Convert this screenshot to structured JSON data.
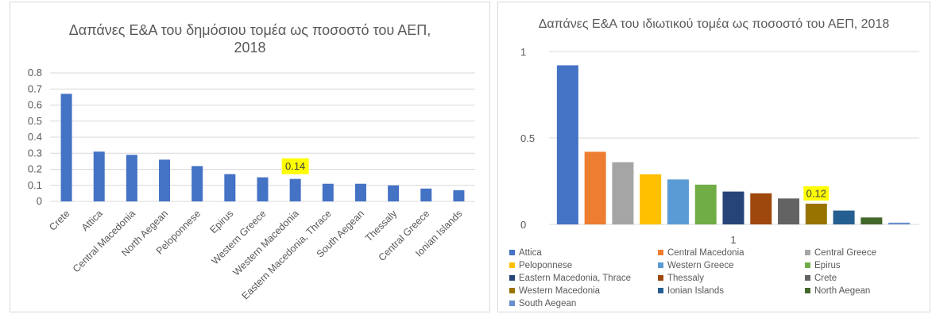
{
  "chart_data": [
    {
      "type": "bar",
      "title": "Δαπάνες Ε&Α του δημόσιου τομέα ως ποσοστό του ΑΕΠ, 2018",
      "categories": [
        "Crete",
        "Attica",
        "Central Macedonia",
        "North Aegean",
        "Peloponnese",
        "Epirus",
        "Western Greece",
        "Western Macedonia",
        "Eastern Macedonia, Thrace",
        "South Aegean",
        "Thessaly",
        "Central Greece",
        "Ionian Islands"
      ],
      "values": [
        0.67,
        0.31,
        0.29,
        0.26,
        0.22,
        0.17,
        0.15,
        0.14,
        0.11,
        0.11,
        0.1,
        0.08,
        0.07
      ],
      "ylim": [
        0,
        0.8
      ],
      "yticks": [
        "0",
        "0.1",
        "0.2",
        "0.3",
        "0.4",
        "0.5",
        "0.6",
        "0.7",
        "0.8"
      ],
      "bar_color": "#4472C4",
      "grid": true,
      "highlight": {
        "category": "Western Macedonia",
        "label": "0.14",
        "background": "#FFFF00"
      }
    },
    {
      "type": "bar",
      "title": "Δαπάνες Ε&Α του ιδιωτικού τομέα ως ποσοστό του ΑΕΠ, 2018",
      "categories": [
        "1"
      ],
      "ylim": [
        0,
        1
      ],
      "yticks": [
        "0",
        "0.5",
        "1"
      ],
      "grid": true,
      "legend_position": "bottom",
      "series": [
        {
          "name": "Attica",
          "values": [
            0.92
          ],
          "color": "#4472C4"
        },
        {
          "name": "Central Macedonia",
          "values": [
            0.42
          ],
          "color": "#ED7D31"
        },
        {
          "name": "Central Greece",
          "values": [
            0.36
          ],
          "color": "#A5A5A5"
        },
        {
          "name": "Peloponnese",
          "values": [
            0.29
          ],
          "color": "#FFC000"
        },
        {
          "name": "Western Greece",
          "values": [
            0.26
          ],
          "color": "#5B9BD5"
        },
        {
          "name": "Epirus",
          "values": [
            0.23
          ],
          "color": "#70AD47"
        },
        {
          "name": "Eastern Macedonia, Thrace",
          "values": [
            0.19
          ],
          "color": "#264478"
        },
        {
          "name": "Thessaly",
          "values": [
            0.18
          ],
          "color": "#9E480E"
        },
        {
          "name": "Crete",
          "values": [
            0.15
          ],
          "color": "#636363"
        },
        {
          "name": "Western Macedonia",
          "values": [
            0.12
          ],
          "color": "#997300"
        },
        {
          "name": "Ionian Islands",
          "values": [
            0.08
          ],
          "color": "#255E91"
        },
        {
          "name": "North Aegean",
          "values": [
            0.04
          ],
          "color": "#43682B"
        },
        {
          "name": "South Aegean",
          "values": [
            0.01
          ],
          "color": "#698ED0"
        }
      ],
      "highlight": {
        "series": "Western Macedonia",
        "label": "0.12",
        "background": "#FFFF00"
      }
    }
  ]
}
